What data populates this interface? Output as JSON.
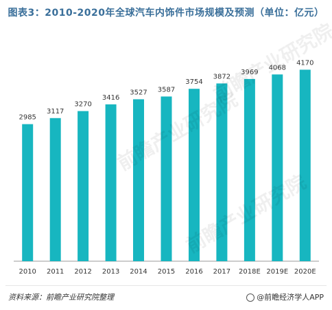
{
  "title": "图表3：2010-2020年全球汽车内饰件市场规模及预测（单位：亿元）",
  "footer": {
    "source": "资料来源：前瞻产业研究院整理",
    "brand": "@前瞻经济学人APP"
  },
  "colors": {
    "bar": "#17b6c0",
    "axis": "#999999",
    "title": "#3a6f9a"
  },
  "chart_data": {
    "type": "bar",
    "categories": [
      "2010",
      "2011",
      "2012",
      "2013",
      "2014",
      "2015",
      "2016",
      "2017",
      "2018E",
      "2019E",
      "2020E"
    ],
    "values": [
      2985,
      3117,
      3270,
      3416,
      3527,
      3587,
      3754,
      3872,
      3969,
      4068,
      4170
    ],
    "title": "图表3：2010-2020年全球汽车内饰件市场规模及预测（单位：亿元）",
    "xlabel": "",
    "ylabel": "",
    "grid": false,
    "legend": "none"
  }
}
